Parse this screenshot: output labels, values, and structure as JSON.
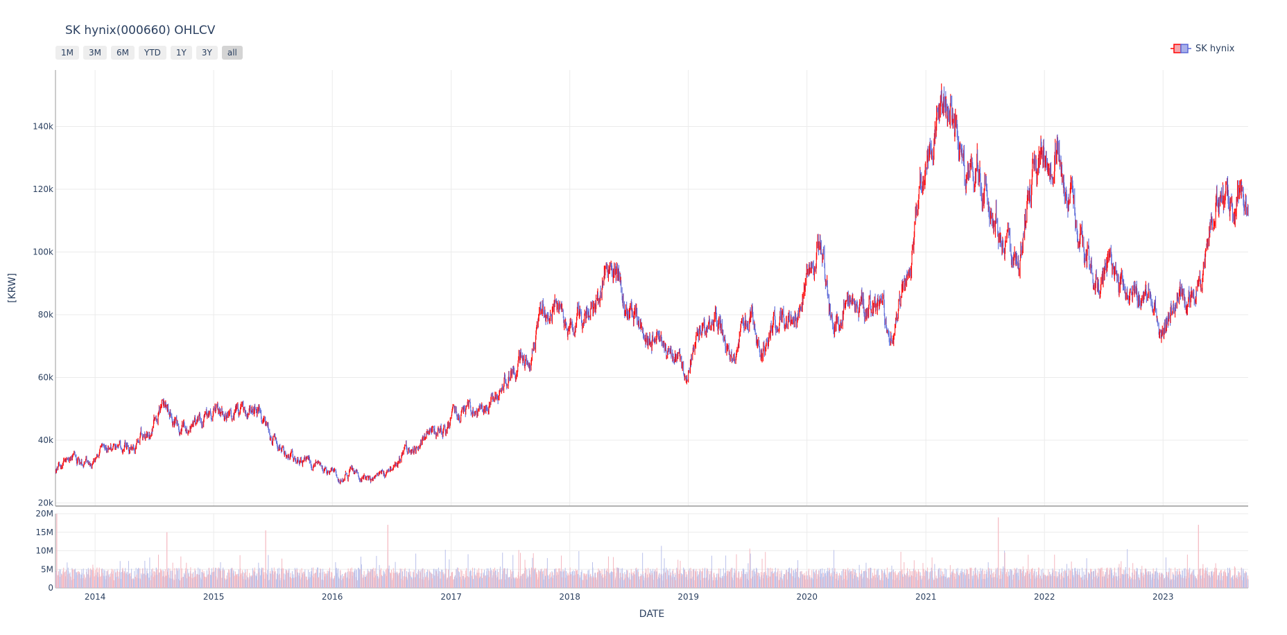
{
  "title": "SK hynix(000660) OHLCV",
  "rangeselector": [
    "1M",
    "3M",
    "6M",
    "YTD",
    "1Y",
    "3Y",
    "all"
  ],
  "rangeselector_active": "all",
  "legend": {
    "label": "SK hynix"
  },
  "colors": {
    "increasing": "#ff0000",
    "decreasing": "#5a68d8",
    "volume_up": "#f4b7bf",
    "volume_down": "#b9c0ea",
    "grid": "#ebebeb",
    "axis": "#999999",
    "text": "#2a3f5f"
  },
  "chart_data": [
    {
      "type": "candlestick",
      "ylabel": "[KRW]",
      "ylim": [
        19000,
        158000
      ],
      "yticks": [
        20000,
        40000,
        60000,
        80000,
        100000,
        120000,
        140000
      ],
      "yticklabels": [
        "20k",
        "40k",
        "60k",
        "80k",
        "100k",
        "120k",
        "140k"
      ],
      "grid": true,
      "legend_position": "top-right",
      "price_anchors": [
        [
          "2013-09-01",
          30000
        ],
        [
          "2013-10-15",
          33500
        ],
        [
          "2013-12-15",
          33000
        ],
        [
          "2014-03-01",
          38500
        ],
        [
          "2014-05-01",
          37500
        ],
        [
          "2014-06-15",
          43000
        ],
        [
          "2014-07-25",
          51000
        ],
        [
          "2014-09-01",
          46000
        ],
        [
          "2014-10-15",
          43500
        ],
        [
          "2014-12-15",
          48000
        ],
        [
          "2015-03-01",
          48000
        ],
        [
          "2015-04-15",
          46000
        ],
        [
          "2015-05-20",
          50000
        ],
        [
          "2015-07-01",
          40000
        ],
        [
          "2015-09-01",
          35000
        ],
        [
          "2015-10-15",
          33000
        ],
        [
          "2015-12-15",
          30000
        ],
        [
          "2016-01-25",
          27500
        ],
        [
          "2016-03-01",
          31000
        ],
        [
          "2016-05-01",
          27000
        ],
        [
          "2016-07-01",
          31000
        ],
        [
          "2016-09-01",
          38000
        ],
        [
          "2016-11-01",
          42000
        ],
        [
          "2016-12-15",
          45000
        ],
        [
          "2017-03-01",
          51000
        ],
        [
          "2017-04-15",
          49000
        ],
        [
          "2017-06-01",
          56000
        ],
        [
          "2017-07-20",
          65000
        ],
        [
          "2017-08-20",
          63000
        ],
        [
          "2017-10-15",
          83000
        ],
        [
          "2017-11-15",
          85000
        ],
        [
          "2017-12-20",
          75000
        ],
        [
          "2018-02-01",
          78000
        ],
        [
          "2018-03-15",
          83000
        ],
        [
          "2018-05-20",
          94000
        ],
        [
          "2018-06-20",
          85000
        ],
        [
          "2018-08-15",
          73000
        ],
        [
          "2018-10-01",
          70000
        ],
        [
          "2018-12-20",
          60000
        ],
        [
          "2019-02-01",
          73000
        ],
        [
          "2019-04-01",
          78000
        ],
        [
          "2019-05-20",
          65000
        ],
        [
          "2019-07-15",
          80000
        ],
        [
          "2019-08-15",
          66000
        ],
        [
          "2019-10-01",
          78000
        ],
        [
          "2019-12-15",
          82000
        ],
        [
          "2020-01-20",
          100000
        ],
        [
          "2020-02-20",
          99000
        ],
        [
          "2020-03-20",
          75000
        ],
        [
          "2020-04-15",
          83000
        ],
        [
          "2020-06-01",
          85000
        ],
        [
          "2020-08-01",
          82000
        ],
        [
          "2020-09-15",
          76000
        ],
        [
          "2020-10-15",
          83000
        ],
        [
          "2020-11-15",
          97000
        ],
        [
          "2020-12-15",
          118000
        ],
        [
          "2021-01-15",
          132000
        ],
        [
          "2021-02-25",
          145000
        ],
        [
          "2021-04-01",
          138000
        ],
        [
          "2021-05-01",
          125000
        ],
        [
          "2021-06-15",
          127000
        ],
        [
          "2021-08-05",
          110000
        ],
        [
          "2021-08-20",
          100000
        ],
        [
          "2021-10-05",
          95000
        ],
        [
          "2021-11-15",
          118000
        ],
        [
          "2021-12-20",
          127000
        ],
        [
          "2022-01-15",
          130000
        ],
        [
          "2022-02-15",
          128000
        ],
        [
          "2022-03-15",
          118000
        ],
        [
          "2022-04-20",
          110000
        ],
        [
          "2022-06-20",
          90000
        ],
        [
          "2022-07-20",
          95000
        ],
        [
          "2022-09-15",
          88000
        ],
        [
          "2022-10-15",
          85000
        ],
        [
          "2022-11-20",
          90000
        ],
        [
          "2022-12-30",
          75000
        ],
        [
          "2023-02-15",
          90000
        ],
        [
          "2023-03-15",
          85000
        ],
        [
          "2023-05-01",
          89000
        ],
        [
          "2023-05-30",
          112000
        ],
        [
          "2023-07-15",
          118000
        ],
        [
          "2023-09-20",
          117000
        ]
      ],
      "price_high": 150000,
      "price_low": 26000
    },
    {
      "type": "bar",
      "xlabel": "DATE",
      "ylim": [
        0,
        20000000
      ],
      "yticks": [
        0,
        5000000,
        10000000,
        15000000,
        20000000
      ],
      "yticklabels": [
        "0",
        "5M",
        "10M",
        "15M",
        "20M"
      ],
      "xticks": [
        "2014-01-01",
        "2015-01-01",
        "2016-01-01",
        "2017-01-01",
        "2018-01-01",
        "2019-01-01",
        "2020-01-01",
        "2021-01-01",
        "2022-01-01",
        "2023-01-01"
      ],
      "xticklabels": [
        "2014",
        "2015",
        "2016",
        "2017",
        "2018",
        "2019",
        "2020",
        "2021",
        "2022",
        "2023"
      ],
      "xlim": [
        "2013-09-01",
        "2023-09-20"
      ],
      "volume_spikes": [
        [
          "2013-09-05",
          20000000
        ],
        [
          "2014-08-10",
          15000000
        ],
        [
          "2015-06-10",
          15500000
        ],
        [
          "2016-06-20",
          17000000
        ],
        [
          "2021-08-12",
          19000000
        ],
        [
          "2023-04-20",
          17000000
        ]
      ]
    }
  ]
}
